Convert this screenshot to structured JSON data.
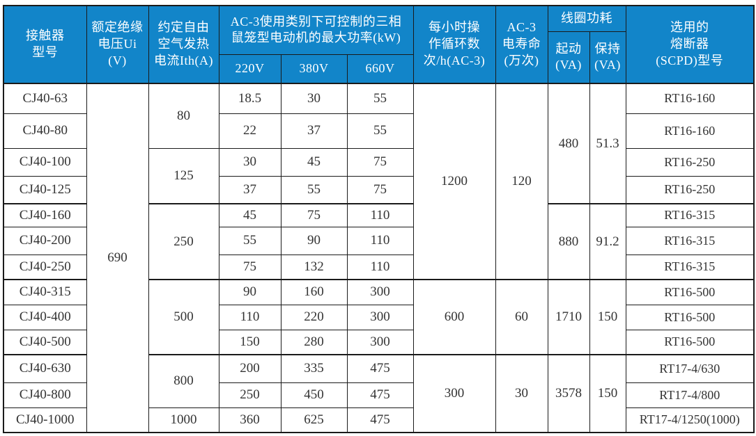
{
  "colors": {
    "header_bg": "#1285c9",
    "header_text": "#ffffff",
    "border": "#1a1a1a",
    "body_text": "#333333",
    "page_bg": "#ffffff"
  },
  "table": {
    "header": {
      "model": "接触器\n型号",
      "rated_voltage": "额定绝缘\n电压Ui (V)",
      "thermal_current": "约定自由\n空气发热\n电流Ith(A)",
      "kw_group": "AC-3使用类别下可控制的三相\n鼠笼型电动机的最大功率(kW)",
      "v220": "220V",
      "v380": "380V",
      "v660": "660V",
      "cycles": "每小时操\n作循环数\n次/h(AC-3)",
      "electrical_life": "AC-3\n电寿命\n(万次)",
      "coil_group": "线圈功耗",
      "coil_start": "起动\n(VA)",
      "coil_hold": "保持\n(VA)",
      "fuse": "选用的\n熔断器\n(SCPD)型号"
    },
    "spans": {
      "ui": "690",
      "ith": [
        "80",
        "125",
        "250",
        "500",
        "800",
        "1000"
      ],
      "cycles": [
        "1200",
        "600",
        "300"
      ],
      "life": [
        "120",
        "60",
        "30"
      ],
      "start": [
        "480",
        "880",
        "1710",
        "3578"
      ],
      "hold": [
        "51.3",
        "91.2",
        "150",
        "150"
      ]
    },
    "rows": [
      {
        "model": "CJ40-63",
        "kw220": "18.5",
        "kw380": "30",
        "kw660": "55",
        "fuse": "RT16-160"
      },
      {
        "model": "CJ40-80",
        "kw220": "22",
        "kw380": "37",
        "kw660": "55",
        "fuse": "RT16-160"
      },
      {
        "model": "CJ40-100",
        "kw220": "30",
        "kw380": "45",
        "kw660": "75",
        "fuse": "RT16-250"
      },
      {
        "model": "CJ40-125",
        "kw220": "37",
        "kw380": "55",
        "kw660": "75",
        "fuse": "RT16-250"
      },
      {
        "model": "CJ40-160",
        "kw220": "45",
        "kw380": "75",
        "kw660": "110",
        "fuse": "RT16-315"
      },
      {
        "model": "CJ40-200",
        "kw220": "55",
        "kw380": "90",
        "kw660": "110",
        "fuse": "RT16-315"
      },
      {
        "model": "CJ40-250",
        "kw220": "75",
        "kw380": "132",
        "kw660": "110",
        "fuse": "RT16-315"
      },
      {
        "model": "CJ40-315",
        "kw220": "90",
        "kw380": "160",
        "kw660": "300",
        "fuse": "RT16-500"
      },
      {
        "model": "CJ40-400",
        "kw220": "110",
        "kw380": "220",
        "kw660": "300",
        "fuse": "RT16-500"
      },
      {
        "model": "CJ40-500",
        "kw220": "150",
        "kw380": "280",
        "kw660": "300",
        "fuse": "RT16-500"
      },
      {
        "model": "CJ40-630",
        "kw220": "200",
        "kw380": "335",
        "kw660": "475",
        "fuse": "RT17-4/630"
      },
      {
        "model": "CJ40-800",
        "kw220": "250",
        "kw380": "450",
        "kw660": "475",
        "fuse": "RT17-4/800"
      },
      {
        "model": "CJ40-1000",
        "kw220": "360",
        "kw380": "625",
        "kw660": "475",
        "fuse": "RT17-4/1250(1000)"
      }
    ]
  }
}
